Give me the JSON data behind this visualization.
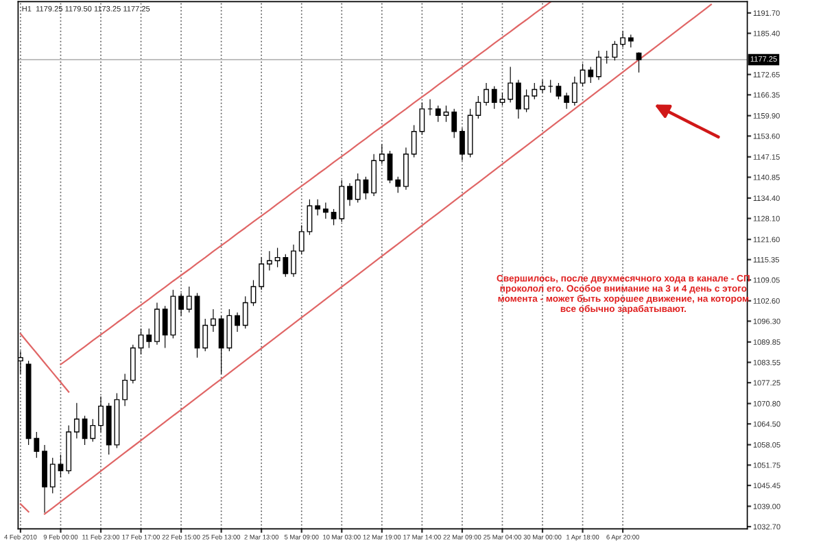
{
  "chart_data": {
    "type": "candlestick",
    "categories": [
      "4 Feb 2010",
      null,
      null,
      null,
      null,
      "9 Feb 00:00",
      null,
      null,
      null,
      null,
      "11 Feb 23:00",
      null,
      null,
      null,
      null,
      "17 Feb 17:00",
      null,
      null,
      null,
      null,
      "22 Feb 15:00",
      null,
      null,
      null,
      null,
      "25 Feb 13:00",
      null,
      null,
      null,
      null,
      "2 Mar 13:00",
      null,
      null,
      null,
      null,
      "5 Mar 09:00",
      null,
      null,
      null,
      null,
      "10 Mar 03:00",
      null,
      null,
      null,
      null,
      "12 Mar 19:00",
      null,
      null,
      null,
      null,
      "17 Mar 14:00",
      null,
      null,
      null,
      null,
      "22 Mar 09:00",
      null,
      null,
      null,
      null,
      "25 Mar 04:00",
      null,
      null,
      null,
      null,
      "30 Mar 00:00",
      null,
      null,
      null,
      null,
      "1 Apr 18:00",
      null,
      null,
      null,
      null,
      "6 Apr 20:00",
      null,
      null,
      null,
      null,
      null,
      null,
      null,
      null,
      null,
      null,
      null,
      null,
      null,
      null,
      null
    ],
    "ohlc": [
      [
        1084,
        1087,
        1080,
        1085
      ],
      [
        1083,
        1084,
        1058,
        1060
      ],
      [
        1060,
        1062,
        1054,
        1056
      ],
      [
        1056,
        1058,
        1037,
        1045
      ],
      [
        1045,
        1054,
        1043,
        1052
      ],
      [
        1052,
        1055,
        1048,
        1050
      ],
      [
        1050,
        1064,
        1049,
        1062
      ],
      [
        1062,
        1071,
        1060,
        1066
      ],
      [
        1066,
        1067,
        1058,
        1060
      ],
      [
        1060,
        1066,
        1059,
        1064
      ],
      [
        1064,
        1073,
        1062,
        1070
      ],
      [
        1070,
        1071,
        1055,
        1058
      ],
      [
        1058,
        1074,
        1057,
        1072
      ],
      [
        1072,
        1080,
        1070,
        1078
      ],
      [
        1078,
        1089,
        1077,
        1088
      ],
      [
        1088,
        1094,
        1086,
        1092
      ],
      [
        1092,
        1094,
        1088,
        1090
      ],
      [
        1090,
        1102,
        1089,
        1100
      ],
      [
        1100,
        1101,
        1088,
        1092
      ],
      [
        1092,
        1106,
        1091,
        1104
      ],
      [
        1104,
        1105,
        1098,
        1100
      ],
      [
        1100,
        1107,
        1099,
        1104
      ],
      [
        1104,
        1105,
        1085,
        1088
      ],
      [
        1088,
        1097,
        1087,
        1095
      ],
      [
        1095,
        1100,
        1093,
        1097
      ],
      [
        1097,
        1098,
        1080,
        1088
      ],
      [
        1088,
        1100,
        1087,
        1098
      ],
      [
        1098,
        1099,
        1093,
        1095
      ],
      [
        1095,
        1104,
        1094,
        1102
      ],
      [
        1102,
        1109,
        1101,
        1107
      ],
      [
        1107,
        1116,
        1106,
        1114
      ],
      [
        1114,
        1118,
        1112,
        1115
      ],
      [
        1115,
        1119,
        1113,
        1116
      ],
      [
        1116,
        1117,
        1110,
        1111
      ],
      [
        1111,
        1120,
        1110,
        1118
      ],
      [
        1118,
        1126,
        1117,
        1124
      ],
      [
        1124,
        1134,
        1123,
        1132
      ],
      [
        1132,
        1134,
        1129,
        1131
      ],
      [
        1131,
        1133,
        1128,
        1130
      ],
      [
        1130,
        1131,
        1126,
        1128
      ],
      [
        1128,
        1140,
        1127,
        1138
      ],
      [
        1138,
        1139,
        1132,
        1134
      ],
      [
        1134,
        1142,
        1133,
        1140
      ],
      [
        1140,
        1141,
        1134,
        1136
      ],
      [
        1136,
        1148,
        1135,
        1146
      ],
      [
        1146,
        1151,
        1145,
        1148
      ],
      [
        1148,
        1149,
        1139,
        1140
      ],
      [
        1140,
        1141,
        1136,
        1138
      ],
      [
        1138,
        1150,
        1137,
        1148
      ],
      [
        1148,
        1157,
        1147,
        1155
      ],
      [
        1155,
        1164,
        1154,
        1162
      ],
      [
        1162,
        1165,
        1160,
        1162
      ],
      [
        1162,
        1163,
        1158,
        1160
      ],
      [
        1160,
        1163,
        1158,
        1161
      ],
      [
        1161,
        1162,
        1153,
        1155
      ],
      [
        1155,
        1156,
        1146,
        1148
      ],
      [
        1148,
        1162,
        1147,
        1160
      ],
      [
        1160,
        1166,
        1159,
        1164
      ],
      [
        1164,
        1170,
        1163,
        1168
      ],
      [
        1168,
        1169,
        1162,
        1164
      ],
      [
        1164,
        1167,
        1163,
        1165
      ],
      [
        1165,
        1175,
        1164,
        1170
      ],
      [
        1170,
        1171,
        1159,
        1162
      ],
      [
        1162,
        1168,
        1161,
        1166
      ],
      [
        1166,
        1170,
        1165,
        1168
      ],
      [
        1168,
        1171,
        1167,
        1169
      ],
      [
        1169,
        1171,
        1167,
        1169
      ],
      [
        1169,
        1170,
        1165,
        1166
      ],
      [
        1166,
        1167,
        1162,
        1164
      ],
      [
        1164,
        1172,
        1163,
        1170
      ],
      [
        1170,
        1176,
        1169,
        1174
      ],
      [
        1174,
        1175,
        1170,
        1172
      ],
      [
        1172,
        1180,
        1171,
        1178
      ],
      [
        1178,
        1180,
        1176,
        1178
      ],
      [
        1178,
        1183,
        1177,
        1182
      ],
      [
        1182,
        1186,
        1181,
        1184
      ],
      [
        1184,
        1185,
        1181,
        1183
      ],
      [
        1179.25,
        1179.5,
        1173.25,
        1177.25
      ],
      null,
      null,
      null,
      null,
      null,
      null,
      null,
      null,
      null,
      null,
      null,
      null,
      null
    ],
    "color": "#000000",
    "series": [
      {
        "type": "line",
        "color": "#e06666",
        "values": [
          null,
          null,
          null,
          null,
          null,
          1082.9,
          1084.7,
          1086.6,
          1088.4,
          1090.3,
          1092.1,
          1093.9,
          1095.8,
          1097.6,
          1099.5,
          1101.3,
          1103.1,
          1105.0,
          1106.8,
          1108.7,
          1110.5,
          1112.3,
          1114.2,
          1116.0,
          1117.9,
          1119.7,
          1121.5,
          1123.4,
          1125.2,
          1127.1,
          1128.9,
          1130.7,
          1132.6,
          1134.4,
          1136.3,
          1138.1,
          1139.9,
          1141.8,
          1143.6,
          1145.5,
          1147.3,
          1149.1,
          1151.0,
          1152.8,
          1154.7,
          1156.5,
          1158.3,
          1160.2,
          1162.0,
          1163.9,
          1165.7,
          1167.5,
          1169.4,
          1171.2,
          1173.1,
          1174.9,
          1176.7,
          1178.6,
          1180.4,
          1182.3,
          1184.1,
          1185.9,
          1187.8,
          1189.6,
          1191.5,
          1193.3,
          1195.1,
          null,
          null,
          null,
          null,
          null,
          null,
          null,
          null,
          null,
          null,
          null,
          null,
          null,
          null,
          null,
          null,
          null,
          null,
          null,
          null,
          null,
          null,
          null,
          null
        ]
      },
      {
        "type": "line",
        "color": "#e06666",
        "values": [
          null,
          null,
          null,
          1036.6,
          1038.5,
          1040.4,
          1042.3,
          1044.2,
          1046.1,
          1048.0,
          1049.9,
          1051.8,
          1053.7,
          1055.6,
          1057.5,
          1059.4,
          1061.3,
          1063.2,
          1065.1,
          1067.0,
          1068.9,
          1070.8,
          1072.7,
          1074.6,
          1076.5,
          1078.4,
          1080.3,
          1082.2,
          1084.1,
          1086.0,
          1087.9,
          1089.8,
          1091.7,
          1093.6,
          1095.5,
          1097.4,
          1099.3,
          1101.2,
          1103.1,
          1105.0,
          1106.9,
          1108.8,
          1110.7,
          1112.6,
          1114.5,
          1116.4,
          1118.3,
          1120.2,
          1122.1,
          1124.0,
          1125.9,
          1127.8,
          1129.7,
          1131.6,
          1133.5,
          1135.4,
          1137.3,
          1139.2,
          1141.1,
          1143.0,
          1144.9,
          1146.8,
          1148.7,
          1150.6,
          1152.5,
          1154.4,
          1156.3,
          1158.2,
          1160.1,
          1162.0,
          1163.9,
          1165.8,
          1167.7,
          1169.6,
          1171.5,
          1173.4,
          1175.3,
          1177.2,
          1179.1,
          1181.0,
          1182.9,
          1184.8,
          1186.7,
          1188.6,
          1190.5,
          1192.4,
          1194.3,
          null,
          null,
          null,
          null
        ]
      },
      {
        "type": "line",
        "color": "#e06666",
        "values": [
          1092.4,
          1089.4,
          1086.4,
          1083.4,
          1080.4,
          1077.4,
          1074.4,
          null,
          null,
          null,
          null,
          null,
          null,
          null,
          null,
          null,
          null,
          null,
          null,
          null,
          null,
          null,
          null,
          null,
          null,
          null,
          null,
          null,
          null,
          null,
          null,
          null,
          null,
          null,
          null,
          null,
          null,
          null,
          null,
          null,
          null,
          null,
          null,
          null,
          null,
          null,
          null,
          null,
          null,
          null,
          null,
          null,
          null,
          null,
          null,
          null,
          null,
          null,
          null,
          null,
          null,
          null,
          null,
          null,
          null,
          null,
          null,
          null,
          null,
          null,
          null,
          null,
          null,
          null,
          null,
          null,
          null,
          null,
          null,
          null,
          null,
          null,
          null,
          null,
          null,
          null,
          null,
          null,
          null,
          null,
          null
        ]
      },
      {
        "type": "line",
        "color": "#e06666",
        "values": [
          1039.7,
          1037.3,
          null,
          null,
          null,
          null,
          null,
          null,
          null,
          null,
          null,
          null,
          null,
          null,
          null,
          null,
          null,
          null,
          null,
          null,
          null,
          null,
          null,
          null,
          null,
          null,
          null,
          null,
          null,
          null,
          null,
          null,
          null,
          null,
          null,
          null,
          null,
          null,
          null,
          null,
          null,
          null,
          null,
          null,
          null,
          null,
          null,
          null,
          null,
          null,
          null,
          null,
          null,
          null,
          null,
          null,
          null,
          null,
          null,
          null,
          null,
          null,
          null,
          null,
          null,
          null,
          null,
          null,
          null,
          null,
          null,
          null,
          null,
          null,
          null,
          null,
          null,
          null,
          null,
          null,
          null,
          null,
          null,
          null,
          null,
          null,
          null,
          null,
          null,
          null,
          null
        ]
      }
    ],
    "ylim": [
      1032.0,
      1195.2
    ],
    "yticks": [
      {
        "value": 1032.7,
        "label": "1032.70"
      },
      {
        "value": 1039.0,
        "label": "1039.00"
      },
      {
        "value": 1045.45,
        "label": "1045.45"
      },
      {
        "value": 1051.75,
        "label": "1051.75"
      },
      {
        "value": 1058.05,
        "label": "1058.05"
      },
      {
        "value": 1064.5,
        "label": "1064.50"
      },
      {
        "value": 1070.8,
        "label": "1070.80"
      },
      {
        "value": 1077.25,
        "label": "1077.25"
      },
      {
        "value": 1083.55,
        "label": "1083.55"
      },
      {
        "value": 1089.85,
        "label": "1089.85"
      },
      {
        "value": 1096.3,
        "label": "1096.30"
      },
      {
        "value": 1102.6,
        "label": "1102.60"
      },
      {
        "value": 1109.05,
        "label": "1109.05"
      },
      {
        "value": 1115.35,
        "label": "1115.35"
      },
      {
        "value": 1121.6,
        "label": "1121.60"
      },
      {
        "value": 1128.1,
        "label": "1128.10"
      },
      {
        "value": 1134.4,
        "label": "1134.40"
      },
      {
        "value": 1140.85,
        "label": "1140.85"
      },
      {
        "value": 1147.15,
        "label": "1147.15"
      },
      {
        "value": 1153.6,
        "label": "1153.60"
      },
      {
        "value": 1159.9,
        "label": "1159.90"
      },
      {
        "value": 1166.35,
        "label": "1166.35"
      },
      {
        "value": 1172.65,
        "label": "1172.65"
      },
      {
        "value": 1185.4,
        "label": "1185.40"
      },
      {
        "value": 1191.7,
        "label": "1191.70"
      }
    ],
    "grid": "x",
    "ref_lines": [
      {
        "axis": "y",
        "value": 1177.25,
        "label": "1177.25",
        "color": "#c0c0c0"
      }
    ],
    "annotations": [
      "H1  1179.25 1179.50 1173.25 1177.25",
      "Свершилось, после двухмесячного хода в канале - СП\nпроколол его. Особое внимание на 3 и 4 день с этого\nмомента - может быть хорошее движение, на котором\nвсе обычно зарабатывают."
    ]
  }
}
